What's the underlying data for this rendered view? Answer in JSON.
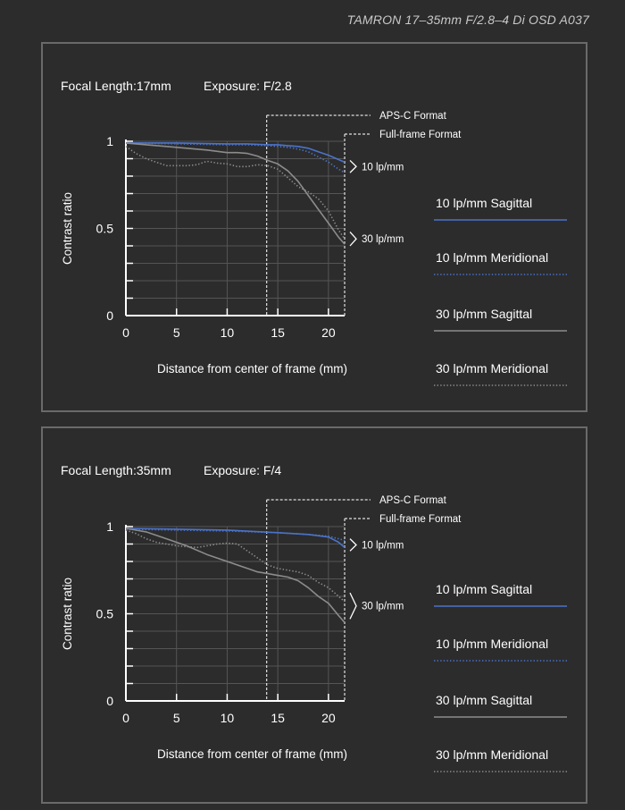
{
  "header": {
    "title": "TAMRON 17–35mm F/2.8–4 Di OSD A037"
  },
  "style": {
    "background": "#2c2c2c",
    "panel_border": "#6a6a6a",
    "grid": "#555555",
    "axis": "#ffffff",
    "blue": "#4b73c9",
    "gray": "#8c8c8c",
    "format_line": "#e0e0e0"
  },
  "legend": [
    {
      "label": "10 lp/mm Sagittal",
      "color": "#4b73c9",
      "dash": "solid"
    },
    {
      "label": "10 lp/mm Meridional",
      "color": "#4b73c9",
      "dash": "dotted"
    },
    {
      "label": "30 lp/mm Sagittal",
      "color": "#8c8c8c",
      "dash": "solid"
    },
    {
      "label": "30 lp/mm Meridional",
      "color": "#8c8c8c",
      "dash": "dotted"
    }
  ],
  "chart_data": [
    {
      "type": "line",
      "info": {
        "focal": "Focal Length:17mm",
        "exposure": "Exposure: F/2.8"
      },
      "xlabel": "Distance from center of frame (mm)",
      "ylabel": "Contrast ratio",
      "xlim": [
        0,
        21.6
      ],
      "ylim": [
        0,
        1
      ],
      "x_ticks": [
        0,
        5,
        10,
        15,
        20
      ],
      "y_ticks": [
        {
          "v": 0,
          "label": "0"
        },
        {
          "v": 0.5,
          "label": "0.5"
        },
        {
          "v": 1,
          "label": "1"
        }
      ],
      "grid": true,
      "format_lines": [
        {
          "x": 13.9,
          "label": "APS-C Format"
        },
        {
          "x": 21.6,
          "label": "Full-frame Format"
        }
      ],
      "annotations": [
        {
          "label": "10 lp/mm",
          "y_range": [
            0.82,
            0.89
          ]
        },
        {
          "label": "30 lp/mm",
          "y_range": [
            0.4,
            0.48
          ]
        }
      ],
      "series": [
        {
          "name": "10 lp/mm Sagittal",
          "color": "#4b73c9",
          "dash": "solid",
          "x": [
            0,
            5,
            10,
            12,
            14,
            15,
            16,
            17,
            18,
            19,
            20,
            21,
            21.6
          ],
          "y": [
            0.99,
            0.99,
            0.985,
            0.985,
            0.98,
            0.98,
            0.975,
            0.97,
            0.96,
            0.94,
            0.92,
            0.895,
            0.88
          ]
        },
        {
          "name": "10 lp/mm Meridional",
          "color": "#4b73c9",
          "dash": "dotted",
          "x": [
            0,
            5,
            10,
            12,
            14,
            15,
            16,
            17,
            18,
            19,
            20,
            21,
            21.6
          ],
          "y": [
            0.99,
            0.985,
            0.98,
            0.98,
            0.975,
            0.97,
            0.965,
            0.955,
            0.94,
            0.91,
            0.88,
            0.84,
            0.82
          ]
        },
        {
          "name": "30 lp/mm Sagittal",
          "color": "#8c8c8c",
          "dash": "solid",
          "x": [
            0,
            2,
            4,
            6,
            8,
            10,
            11,
            12,
            13,
            14,
            15,
            16,
            17,
            18,
            19,
            20,
            21,
            21.6
          ],
          "y": [
            0.99,
            0.98,
            0.97,
            0.96,
            0.95,
            0.935,
            0.935,
            0.93,
            0.915,
            0.89,
            0.87,
            0.83,
            0.77,
            0.69,
            0.61,
            0.53,
            0.45,
            0.41
          ]
        },
        {
          "name": "30 lp/mm Meridional",
          "color": "#8c8c8c",
          "dash": "dotted",
          "x": [
            0,
            1,
            2,
            3,
            4,
            5,
            6,
            7,
            8,
            9,
            10,
            11,
            12,
            13,
            14,
            15,
            16,
            17,
            18,
            19,
            20,
            21,
            21.6
          ],
          "y": [
            0.97,
            0.93,
            0.9,
            0.88,
            0.86,
            0.86,
            0.86,
            0.865,
            0.885,
            0.875,
            0.87,
            0.855,
            0.855,
            0.865,
            0.86,
            0.84,
            0.79,
            0.74,
            0.71,
            0.67,
            0.6,
            0.49,
            0.44
          ]
        }
      ]
    },
    {
      "type": "line",
      "info": {
        "focal": "Focal Length:35mm",
        "exposure": "Exposure: F/4"
      },
      "xlabel": "Distance from center of frame (mm)",
      "ylabel": "Contrast ratio",
      "xlim": [
        0,
        21.6
      ],
      "ylim": [
        0,
        1
      ],
      "x_ticks": [
        0,
        5,
        10,
        15,
        20
      ],
      "y_ticks": [
        {
          "v": 0,
          "label": "0"
        },
        {
          "v": 0.5,
          "label": "0.5"
        },
        {
          "v": 1,
          "label": "1"
        }
      ],
      "grid": true,
      "format_lines": [
        {
          "x": 13.9,
          "label": "APS-C Format"
        },
        {
          "x": 21.6,
          "label": "Full-frame Format"
        }
      ],
      "annotations": [
        {
          "label": "10 lp/mm",
          "y_range": [
            0.86,
            0.93
          ]
        },
        {
          "label": "30 lp/mm",
          "y_range": [
            0.47,
            0.62
          ]
        }
      ],
      "series": [
        {
          "name": "10 lp/mm Sagittal",
          "color": "#4b73c9",
          "dash": "solid",
          "x": [
            0,
            5,
            10,
            15,
            18,
            20,
            21,
            21.6
          ],
          "y": [
            0.99,
            0.985,
            0.98,
            0.965,
            0.955,
            0.94,
            0.91,
            0.88
          ]
        },
        {
          "name": "10 lp/mm Meridional",
          "color": "#4b73c9",
          "dash": "dotted",
          "x": [
            0,
            5,
            10,
            15,
            18,
            20,
            21,
            21.6
          ],
          "y": [
            0.985,
            0.98,
            0.975,
            0.965,
            0.955,
            0.945,
            0.93,
            0.92
          ]
        },
        {
          "name": "30 lp/mm Sagittal",
          "color": "#8c8c8c",
          "dash": "solid",
          "x": [
            0,
            2,
            4,
            6,
            8,
            10,
            12,
            13,
            14,
            15,
            16,
            17,
            18,
            19,
            20,
            21,
            21.6
          ],
          "y": [
            0.99,
            0.97,
            0.93,
            0.89,
            0.84,
            0.8,
            0.76,
            0.74,
            0.73,
            0.72,
            0.71,
            0.69,
            0.65,
            0.6,
            0.56,
            0.49,
            0.45
          ]
        },
        {
          "name": "30 lp/mm Meridional",
          "color": "#8c8c8c",
          "dash": "dotted",
          "x": [
            0,
            1,
            2,
            3,
            4,
            5,
            6,
            7,
            8,
            9,
            10,
            11,
            12,
            13,
            14,
            15,
            16,
            17,
            18,
            19,
            20,
            21,
            21.6
          ],
          "y": [
            0.98,
            0.96,
            0.93,
            0.91,
            0.9,
            0.89,
            0.885,
            0.88,
            0.89,
            0.9,
            0.905,
            0.9,
            0.86,
            0.82,
            0.78,
            0.76,
            0.75,
            0.74,
            0.72,
            0.68,
            0.65,
            0.6,
            0.57
          ]
        }
      ]
    }
  ]
}
